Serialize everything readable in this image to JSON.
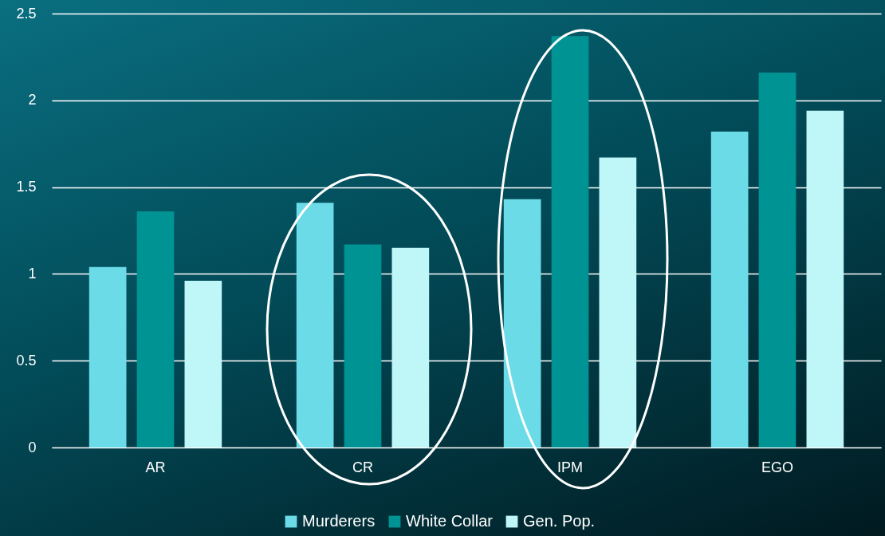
{
  "chart_data": {
    "type": "bar",
    "categories": [
      "AR",
      "CR",
      "IPM",
      "EGO"
    ],
    "series": [
      {
        "name": "Murderers",
        "color": "#6cdbe8",
        "values": [
          1.04,
          1.41,
          1.43,
          1.82
        ]
      },
      {
        "name": "White Collar",
        "color": "#009393",
        "values": [
          1.36,
          1.17,
          2.37,
          2.16
        ]
      },
      {
        "name": "Gen. Pop.",
        "color": "#bff6f8",
        "values": [
          0.96,
          1.15,
          1.67,
          1.94
        ]
      }
    ],
    "ylim": [
      0,
      2.5
    ],
    "yticks": [
      0,
      0.5,
      1,
      1.5,
      2,
      2.5
    ],
    "grid": "y",
    "legend": "bottom"
  }
}
